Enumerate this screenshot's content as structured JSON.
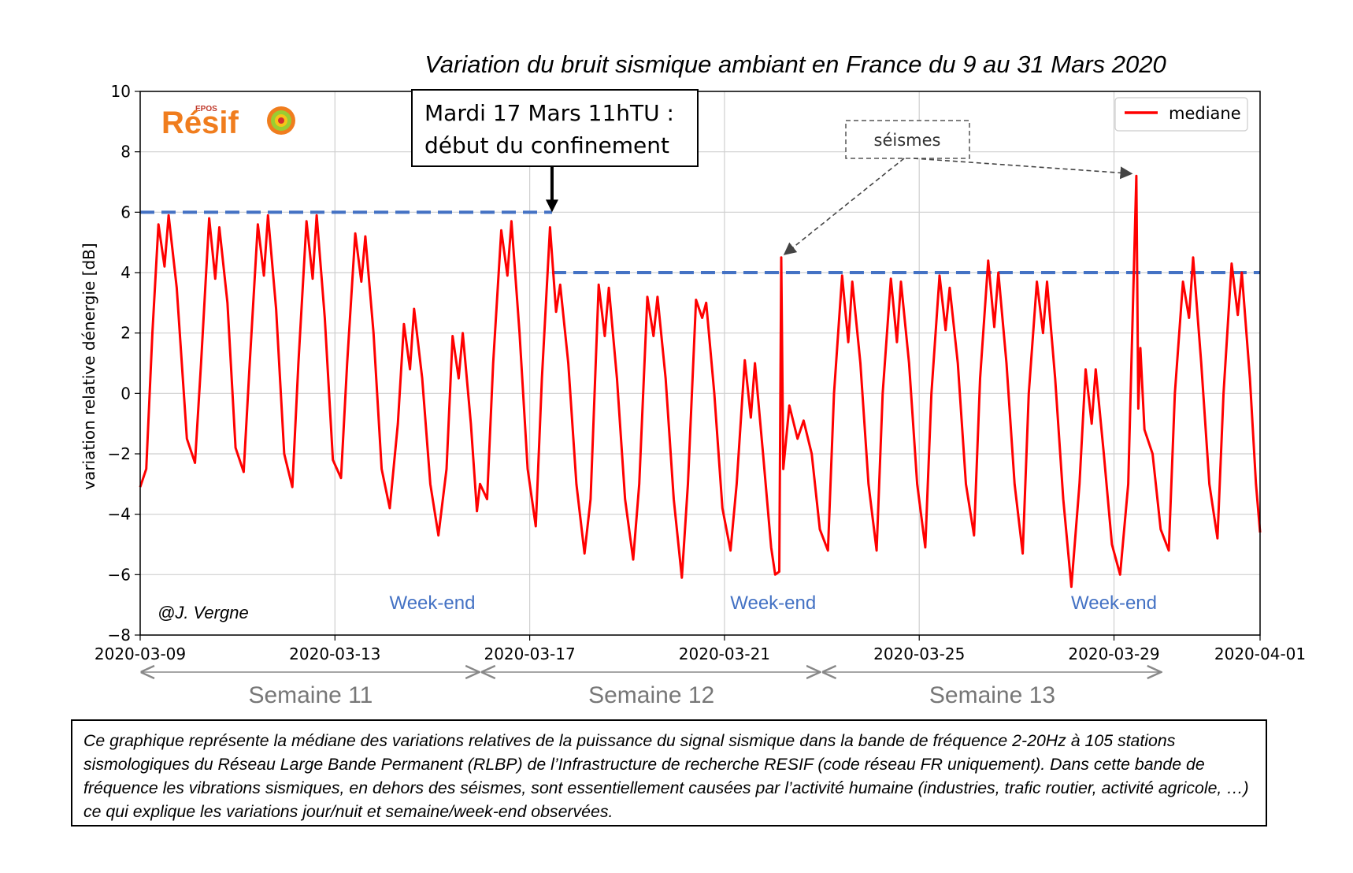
{
  "chart_data": {
    "type": "line",
    "title": "Variation du bruit sismique ambiant en France du 9 au 31 Mars 2020",
    "ylabel": "variation relative dénergie [dB]",
    "xlabel": "",
    "xlim": [
      "2020-03-09",
      "2020-04-01"
    ],
    "ylim": [
      -8,
      10
    ],
    "x_ticks": [
      "2020-03-09",
      "2020-03-13",
      "2020-03-17",
      "2020-03-21",
      "2020-03-25",
      "2020-03-29",
      "2020-04-01"
    ],
    "y_ticks": [
      "−8",
      "−6",
      "−4",
      "−2",
      "0",
      "2",
      "4",
      "6",
      "8",
      "10"
    ],
    "y_tick_values": [
      -8,
      -6,
      -4,
      -2,
      0,
      2,
      4,
      6,
      8,
      10
    ],
    "grid": true,
    "legend_position": "top-right",
    "series": [
      {
        "name": "mediane",
        "color": "#ff0000",
        "points": [
          [
            "2020-03-09 00:00",
            -3.1
          ],
          [
            "2020-03-09 03:00",
            -2.5
          ],
          [
            "2020-03-09 06:00",
            2.0
          ],
          [
            "2020-03-09 09:00",
            5.6
          ],
          [
            "2020-03-09 12:00",
            4.2
          ],
          [
            "2020-03-09 14:00",
            5.9
          ],
          [
            "2020-03-09 18:00",
            3.5
          ],
          [
            "2020-03-09 23:00",
            -1.5
          ],
          [
            "2020-03-10 03:00",
            -2.3
          ],
          [
            "2020-03-10 06:00",
            1.0
          ],
          [
            "2020-03-10 10:00",
            5.8
          ],
          [
            "2020-03-10 13:00",
            3.8
          ],
          [
            "2020-03-10 15:00",
            5.5
          ],
          [
            "2020-03-10 19:00",
            3.0
          ],
          [
            "2020-03-10 23:00",
            -1.8
          ],
          [
            "2020-03-11 03:00",
            -2.6
          ],
          [
            "2020-03-11 06:00",
            1.0
          ],
          [
            "2020-03-11 10:00",
            5.6
          ],
          [
            "2020-03-11 13:00",
            3.9
          ],
          [
            "2020-03-11 15:00",
            5.9
          ],
          [
            "2020-03-11 19:00",
            2.8
          ],
          [
            "2020-03-11 23:00",
            -2.0
          ],
          [
            "2020-03-12 03:00",
            -3.1
          ],
          [
            "2020-03-12 06:00",
            1.0
          ],
          [
            "2020-03-12 10:00",
            5.7
          ],
          [
            "2020-03-12 13:00",
            3.8
          ],
          [
            "2020-03-12 15:00",
            5.9
          ],
          [
            "2020-03-12 19:00",
            2.5
          ],
          [
            "2020-03-12 23:00",
            -2.2
          ],
          [
            "2020-03-13 03:00",
            -2.8
          ],
          [
            "2020-03-13 06:00",
            1.0
          ],
          [
            "2020-03-13 10:00",
            5.3
          ],
          [
            "2020-03-13 13:00",
            3.7
          ],
          [
            "2020-03-13 15:00",
            5.2
          ],
          [
            "2020-03-13 19:00",
            2.0
          ],
          [
            "2020-03-13 23:00",
            -2.5
          ],
          [
            "2020-03-14 03:00",
            -3.8
          ],
          [
            "2020-03-14 07:00",
            -1.0
          ],
          [
            "2020-03-14 10:00",
            2.3
          ],
          [
            "2020-03-14 13:00",
            0.8
          ],
          [
            "2020-03-14 15:00",
            2.8
          ],
          [
            "2020-03-14 19:00",
            0.5
          ],
          [
            "2020-03-14 23:00",
            -3.0
          ],
          [
            "2020-03-15 03:00",
            -4.7
          ],
          [
            "2020-03-15 07:00",
            -2.5
          ],
          [
            "2020-03-15 10:00",
            1.9
          ],
          [
            "2020-03-15 13:00",
            0.5
          ],
          [
            "2020-03-15 15:00",
            2.0
          ],
          [
            "2020-03-15 19:00",
            -1.0
          ],
          [
            "2020-03-15 22:00",
            -3.9
          ],
          [
            "2020-03-15 23:30",
            -3.0
          ],
          [
            "2020-03-16 03:00",
            -3.5
          ],
          [
            "2020-03-16 06:00",
            1.0
          ],
          [
            "2020-03-16 10:00",
            5.4
          ],
          [
            "2020-03-16 13:00",
            3.9
          ],
          [
            "2020-03-16 15:00",
            5.7
          ],
          [
            "2020-03-16 19:00",
            2.0
          ],
          [
            "2020-03-16 23:00",
            -2.5
          ],
          [
            "2020-03-17 03:00",
            -4.4
          ],
          [
            "2020-03-17 06:00",
            0.5
          ],
          [
            "2020-03-17 10:00",
            5.5
          ],
          [
            "2020-03-17 13:00",
            2.7
          ],
          [
            "2020-03-17 15:00",
            3.6
          ],
          [
            "2020-03-17 19:00",
            1.0
          ],
          [
            "2020-03-17 23:00",
            -3.0
          ],
          [
            "2020-03-18 03:00",
            -5.3
          ],
          [
            "2020-03-18 06:00",
            -3.5
          ],
          [
            "2020-03-18 10:00",
            3.6
          ],
          [
            "2020-03-18 13:00",
            1.9
          ],
          [
            "2020-03-18 15:00",
            3.5
          ],
          [
            "2020-03-18 19:00",
            0.5
          ],
          [
            "2020-03-18 23:00",
            -3.5
          ],
          [
            "2020-03-19 03:00",
            -5.5
          ],
          [
            "2020-03-19 06:00",
            -3.0
          ],
          [
            "2020-03-19 10:00",
            3.2
          ],
          [
            "2020-03-19 13:00",
            1.9
          ],
          [
            "2020-03-19 15:00",
            3.2
          ],
          [
            "2020-03-19 19:00",
            0.5
          ],
          [
            "2020-03-19 23:00",
            -3.5
          ],
          [
            "2020-03-20 03:00",
            -6.1
          ],
          [
            "2020-03-20 06:00",
            -3.0
          ],
          [
            "2020-03-20 10:00",
            3.1
          ],
          [
            "2020-03-20 13:00",
            2.5
          ],
          [
            "2020-03-20 15:00",
            3.0
          ],
          [
            "2020-03-20 19:00",
            0.0
          ],
          [
            "2020-03-20 23:00",
            -3.8
          ],
          [
            "2020-03-21 03:00",
            -5.2
          ],
          [
            "2020-03-21 06:00",
            -3.0
          ],
          [
            "2020-03-21 10:00",
            1.1
          ],
          [
            "2020-03-21 13:00",
            -0.8
          ],
          [
            "2020-03-21 15:00",
            1.0
          ],
          [
            "2020-03-21 19:00",
            -2.0
          ],
          [
            "2020-03-21 23:00",
            -5.1
          ],
          [
            "2020-03-22 01:00",
            -6.0
          ],
          [
            "2020-03-22 03:00",
            -5.9
          ],
          [
            "2020-03-22 04:00",
            4.5
          ],
          [
            "2020-03-22 05:00",
            -2.5
          ],
          [
            "2020-03-22 08:00",
            -0.4
          ],
          [
            "2020-03-22 12:00",
            -1.5
          ],
          [
            "2020-03-22 15:00",
            -0.9
          ],
          [
            "2020-03-22 19:00",
            -2.0
          ],
          [
            "2020-03-22 23:00",
            -4.5
          ],
          [
            "2020-03-23 03:00",
            -5.2
          ],
          [
            "2020-03-23 06:00",
            0.0
          ],
          [
            "2020-03-23 10:00",
            3.9
          ],
          [
            "2020-03-23 13:00",
            1.7
          ],
          [
            "2020-03-23 15:00",
            3.7
          ],
          [
            "2020-03-23 19:00",
            1.0
          ],
          [
            "2020-03-23 23:00",
            -3.0
          ],
          [
            "2020-03-24 03:00",
            -5.2
          ],
          [
            "2020-03-24 06:00",
            0.0
          ],
          [
            "2020-03-24 10:00",
            3.8
          ],
          [
            "2020-03-24 13:00",
            1.7
          ],
          [
            "2020-03-24 15:00",
            3.7
          ],
          [
            "2020-03-24 19:00",
            1.0
          ],
          [
            "2020-03-24 23:00",
            -3.0
          ],
          [
            "2020-03-25 03:00",
            -5.1
          ],
          [
            "2020-03-25 06:00",
            0.0
          ],
          [
            "2020-03-25 10:00",
            3.9
          ],
          [
            "2020-03-25 13:00",
            2.1
          ],
          [
            "2020-03-25 15:00",
            3.5
          ],
          [
            "2020-03-25 19:00",
            1.0
          ],
          [
            "2020-03-25 23:00",
            -3.0
          ],
          [
            "2020-03-26 03:00",
            -4.7
          ],
          [
            "2020-03-26 06:00",
            0.5
          ],
          [
            "2020-03-26 10:00",
            4.4
          ],
          [
            "2020-03-26 13:00",
            2.2
          ],
          [
            "2020-03-26 15:00",
            4.0
          ],
          [
            "2020-03-26 19:00",
            1.0
          ],
          [
            "2020-03-26 23:00",
            -3.0
          ],
          [
            "2020-03-27 03:00",
            -5.3
          ],
          [
            "2020-03-27 06:00",
            0.0
          ],
          [
            "2020-03-27 10:00",
            3.7
          ],
          [
            "2020-03-27 13:00",
            2.0
          ],
          [
            "2020-03-27 15:00",
            3.7
          ],
          [
            "2020-03-27 19:00",
            0.5
          ],
          [
            "2020-03-27 23:00",
            -3.5
          ],
          [
            "2020-03-28 03:00",
            -6.4
          ],
          [
            "2020-03-28 07:00",
            -3.0
          ],
          [
            "2020-03-28 10:00",
            0.8
          ],
          [
            "2020-03-28 13:00",
            -1.0
          ],
          [
            "2020-03-28 15:00",
            0.8
          ],
          [
            "2020-03-28 19:00",
            -2.0
          ],
          [
            "2020-03-28 23:00",
            -5.0
          ],
          [
            "2020-03-29 03:00",
            -6.0
          ],
          [
            "2020-03-29 07:00",
            -3.0
          ],
          [
            "2020-03-29 11:00",
            7.2
          ],
          [
            "2020-03-29 12:00",
            -0.5
          ],
          [
            "2020-03-29 13:00",
            1.5
          ],
          [
            "2020-03-29 15:00",
            -1.2
          ],
          [
            "2020-03-29 19:00",
            -2.0
          ],
          [
            "2020-03-29 23:00",
            -4.5
          ],
          [
            "2020-03-30 03:00",
            -5.2
          ],
          [
            "2020-03-30 06:00",
            0.0
          ],
          [
            "2020-03-30 10:00",
            3.7
          ],
          [
            "2020-03-30 13:00",
            2.5
          ],
          [
            "2020-03-30 15:00",
            4.5
          ],
          [
            "2020-03-30 19:00",
            1.0
          ],
          [
            "2020-03-30 23:00",
            -3.0
          ],
          [
            "2020-03-31 03:00",
            -4.8
          ],
          [
            "2020-03-31 06:00",
            0.0
          ],
          [
            "2020-03-31 10:00",
            4.3
          ],
          [
            "2020-03-31 13:00",
            2.6
          ],
          [
            "2020-03-31 15:00",
            4.0
          ],
          [
            "2020-03-31 19:00",
            0.5
          ],
          [
            "2020-03-31 22:00",
            -3.0
          ],
          [
            "2020-04-01 00:00",
            -4.6
          ]
        ]
      }
    ],
    "reference_lines": [
      {
        "from": "2020-03-09",
        "to": "2020-03-17 11:00",
        "y": 6,
        "color": "#4472c4",
        "style": "dashed"
      },
      {
        "from": "2020-03-17 11:00",
        "to": "2020-04-01",
        "y": 4,
        "color": "#4472c4",
        "style": "dashed"
      }
    ],
    "annotations": {
      "confinement": {
        "line1": "Mardi 17 Mars 11hTU :",
        "line2": "début du confinement",
        "arrow_to": [
          "2020-03-17 11:00",
          6
        ]
      },
      "seismes": {
        "label": "séismes",
        "targets": [
          [
            "2020-03-22 04:00",
            4.5
          ],
          [
            "2020-03-29 11:00",
            7.2
          ]
        ]
      },
      "weekends": [
        {
          "label": "Week-end",
          "at": "2020-03-15"
        },
        {
          "label": "Week-end",
          "at": "2020-03-22"
        },
        {
          "label": "Week-end",
          "at": "2020-03-29"
        }
      ],
      "credit": "@J. Vergne"
    },
    "weeks": [
      {
        "label": "Semaine 11",
        "from": "2020-03-09",
        "to": "2020-03-16"
      },
      {
        "label": "Semaine 12",
        "from": "2020-03-16",
        "to": "2020-03-23"
      },
      {
        "label": "Semaine 13",
        "from": "2020-03-23",
        "to": "2020-03-30"
      }
    ]
  },
  "logo": {
    "text": "Résif",
    "epos": "EPOS"
  },
  "caption": "Ce graphique représente la médiane des variations relatives de la puissance du signal sismique dans la bande de fréquence 2-20Hz à 105 stations sismologiques du Réseau Large Bande Permanent (RLBP) de l’Infrastructure de recherche RESIF (code réseau FR uniquement). Dans cette bande de fréquence les vibrations sismiques, en dehors des séismes, sont essentiellement causées par l’activité humaine (industries, trafic routier, activité agricole, …) ce qui explique les variations jour/nuit et semaine/week-end observées."
}
